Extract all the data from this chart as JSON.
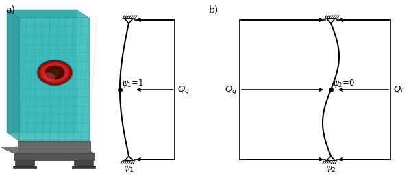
{
  "bg_color": "#ffffff",
  "label_a": "a)",
  "label_b": "b)",
  "line_color": "#000000",
  "glass_color": "#3BBCBC",
  "glass_edge": "#1a8888",
  "mesh_line_color": "#1a9090",
  "channel_color": "#555555",
  "channel_edge": "#333333",
  "foot_color": "#444444",
  "impactor_red": "#cc2222",
  "impactor_dark": "#881111",
  "impactor_brown": "#7B3F00",
  "shadow_color": "#333333"
}
